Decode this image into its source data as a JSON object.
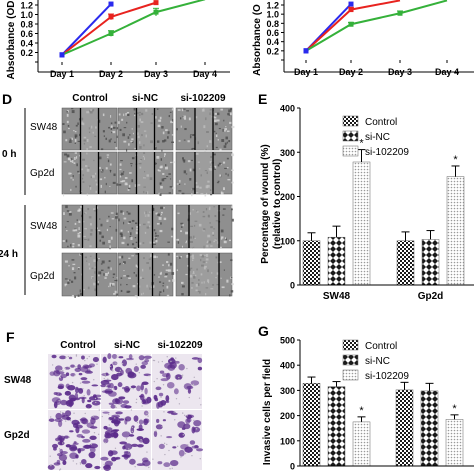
{
  "panels": {
    "D": {
      "letter": "D",
      "columns": [
        "Control",
        "si-NC",
        "si-102209"
      ],
      "time_labels": [
        "0 h",
        "24 h"
      ],
      "row_labels": [
        "SW48",
        "Gp2d",
        "SW48",
        "Gp2d"
      ]
    },
    "F": {
      "letter": "F",
      "columns": [
        "Control",
        "si-NC",
        "si-102209"
      ],
      "row_labels": [
        "SW48",
        "Gp2d"
      ]
    }
  },
  "colors": {
    "red": "#e8231f",
    "blue": "#2a2aee",
    "green": "#35b13a",
    "wound_bg": "#8f8f8f",
    "transwell_bg": "#ece6ef",
    "stain": "#5a2a8a"
  },
  "chart_data": [
    {
      "panel": "",
      "type": "line",
      "ylabel": "Absorbance (OD",
      "categories": [
        "Day 1",
        "Day 2",
        "Day 3",
        "Day 4"
      ],
      "ylim": [
        0,
        1.2
      ],
      "yticks": [
        0,
        0.2,
        0.4,
        0.6,
        0.8,
        1.0,
        1.2
      ],
      "ytick_labels": [
        "",
        "0.2",
        "0.4",
        "0.6",
        "0.8",
        "1.0",
        "1.2"
      ],
      "series": [
        {
          "color": "blue",
          "values": [
            0.15,
            1.22,
            null,
            null
          ],
          "errors": [
            0,
            0
          ]
        },
        {
          "color": "red",
          "values": [
            0.15,
            0.95,
            1.25,
            null
          ],
          "errors": [
            0,
            0.06,
            0
          ]
        },
        {
          "color": "green",
          "values": [
            0.15,
            0.6,
            1.05,
            1.32
          ],
          "errors": [
            0,
            0.06,
            0.08,
            0
          ]
        }
      ]
    },
    {
      "panel": "",
      "type": "line",
      "ylabel": "Absorbance (O",
      "categories": [
        "Day 1",
        "Day 2",
        "Day 3",
        "Day 4"
      ],
      "ylim": [
        0,
        1.2
      ],
      "yticks": [
        0,
        0.2,
        0.4,
        0.6,
        0.8,
        1.0,
        1.2
      ],
      "ytick_labels": [
        "",
        "0.2",
        "0.4",
        "0.6",
        "0.8",
        "1.0",
        "1.2"
      ],
      "series": [
        {
          "color": "blue",
          "values": [
            0.2,
            1.22,
            null,
            null
          ],
          "errors": [
            0,
            0
          ]
        },
        {
          "color": "red",
          "values": [
            0.2,
            1.1,
            1.3,
            null
          ],
          "errors": [
            0,
            0.05,
            0
          ]
        },
        {
          "color": "green",
          "values": [
            0.2,
            0.78,
            1.02,
            1.3
          ],
          "errors": [
            0,
            0.04,
            0.05,
            0
          ]
        }
      ]
    },
    {
      "panel": "E",
      "type": "bar",
      "ylabel": "Percentage of wound (%)",
      "ylabel2": "(relative to control)",
      "categories": [
        "SW48",
        "Gp2d"
      ],
      "ylim": [
        0,
        400
      ],
      "yticks": [
        0,
        100,
        200,
        300,
        400
      ],
      "ytick_labels": [
        "0",
        "100",
        "200",
        "300",
        "400"
      ],
      "legend": [
        "Control",
        "si-NC",
        "si-102209"
      ],
      "legend_position": "top-right",
      "series": [
        {
          "name": "Control",
          "pattern": "checker",
          "values": [
            100,
            100
          ],
          "errors": [
            18,
            20
          ]
        },
        {
          "name": "si-NC",
          "pattern": "diamond",
          "values": [
            108,
            103
          ],
          "errors": [
            25,
            20
          ]
        },
        {
          "name": "si-102209",
          "pattern": "dots",
          "values": [
            278,
            245
          ],
          "errors": [
            28,
            24
          ]
        }
      ],
      "significance": [
        null,
        null,
        "*"
      ],
      "significance_label": "*"
    },
    {
      "panel": "G",
      "type": "bar",
      "ylabel": "Invasive cells per field",
      "categories": [
        "SW48",
        "Gp2d"
      ],
      "ylim": [
        0,
        500
      ],
      "yticks": [
        0,
        100,
        200,
        300,
        400,
        500
      ],
      "ytick_labels": [
        "0",
        "100",
        "200",
        "300",
        "400",
        "500"
      ],
      "legend": [
        "Control",
        "si-NC",
        "si-102209"
      ],
      "legend_position": "top-right",
      "series": [
        {
          "name": "Control",
          "pattern": "checker",
          "values": [
            328,
            302
          ],
          "errors": [
            25,
            30
          ]
        },
        {
          "name": "si-NC",
          "pattern": "diamond",
          "values": [
            315,
            298
          ],
          "errors": [
            20,
            30
          ]
        },
        {
          "name": "si-102209",
          "pattern": "dots",
          "values": [
            175,
            185
          ],
          "errors": [
            20,
            18
          ]
        }
      ],
      "significance_label": "*"
    }
  ]
}
